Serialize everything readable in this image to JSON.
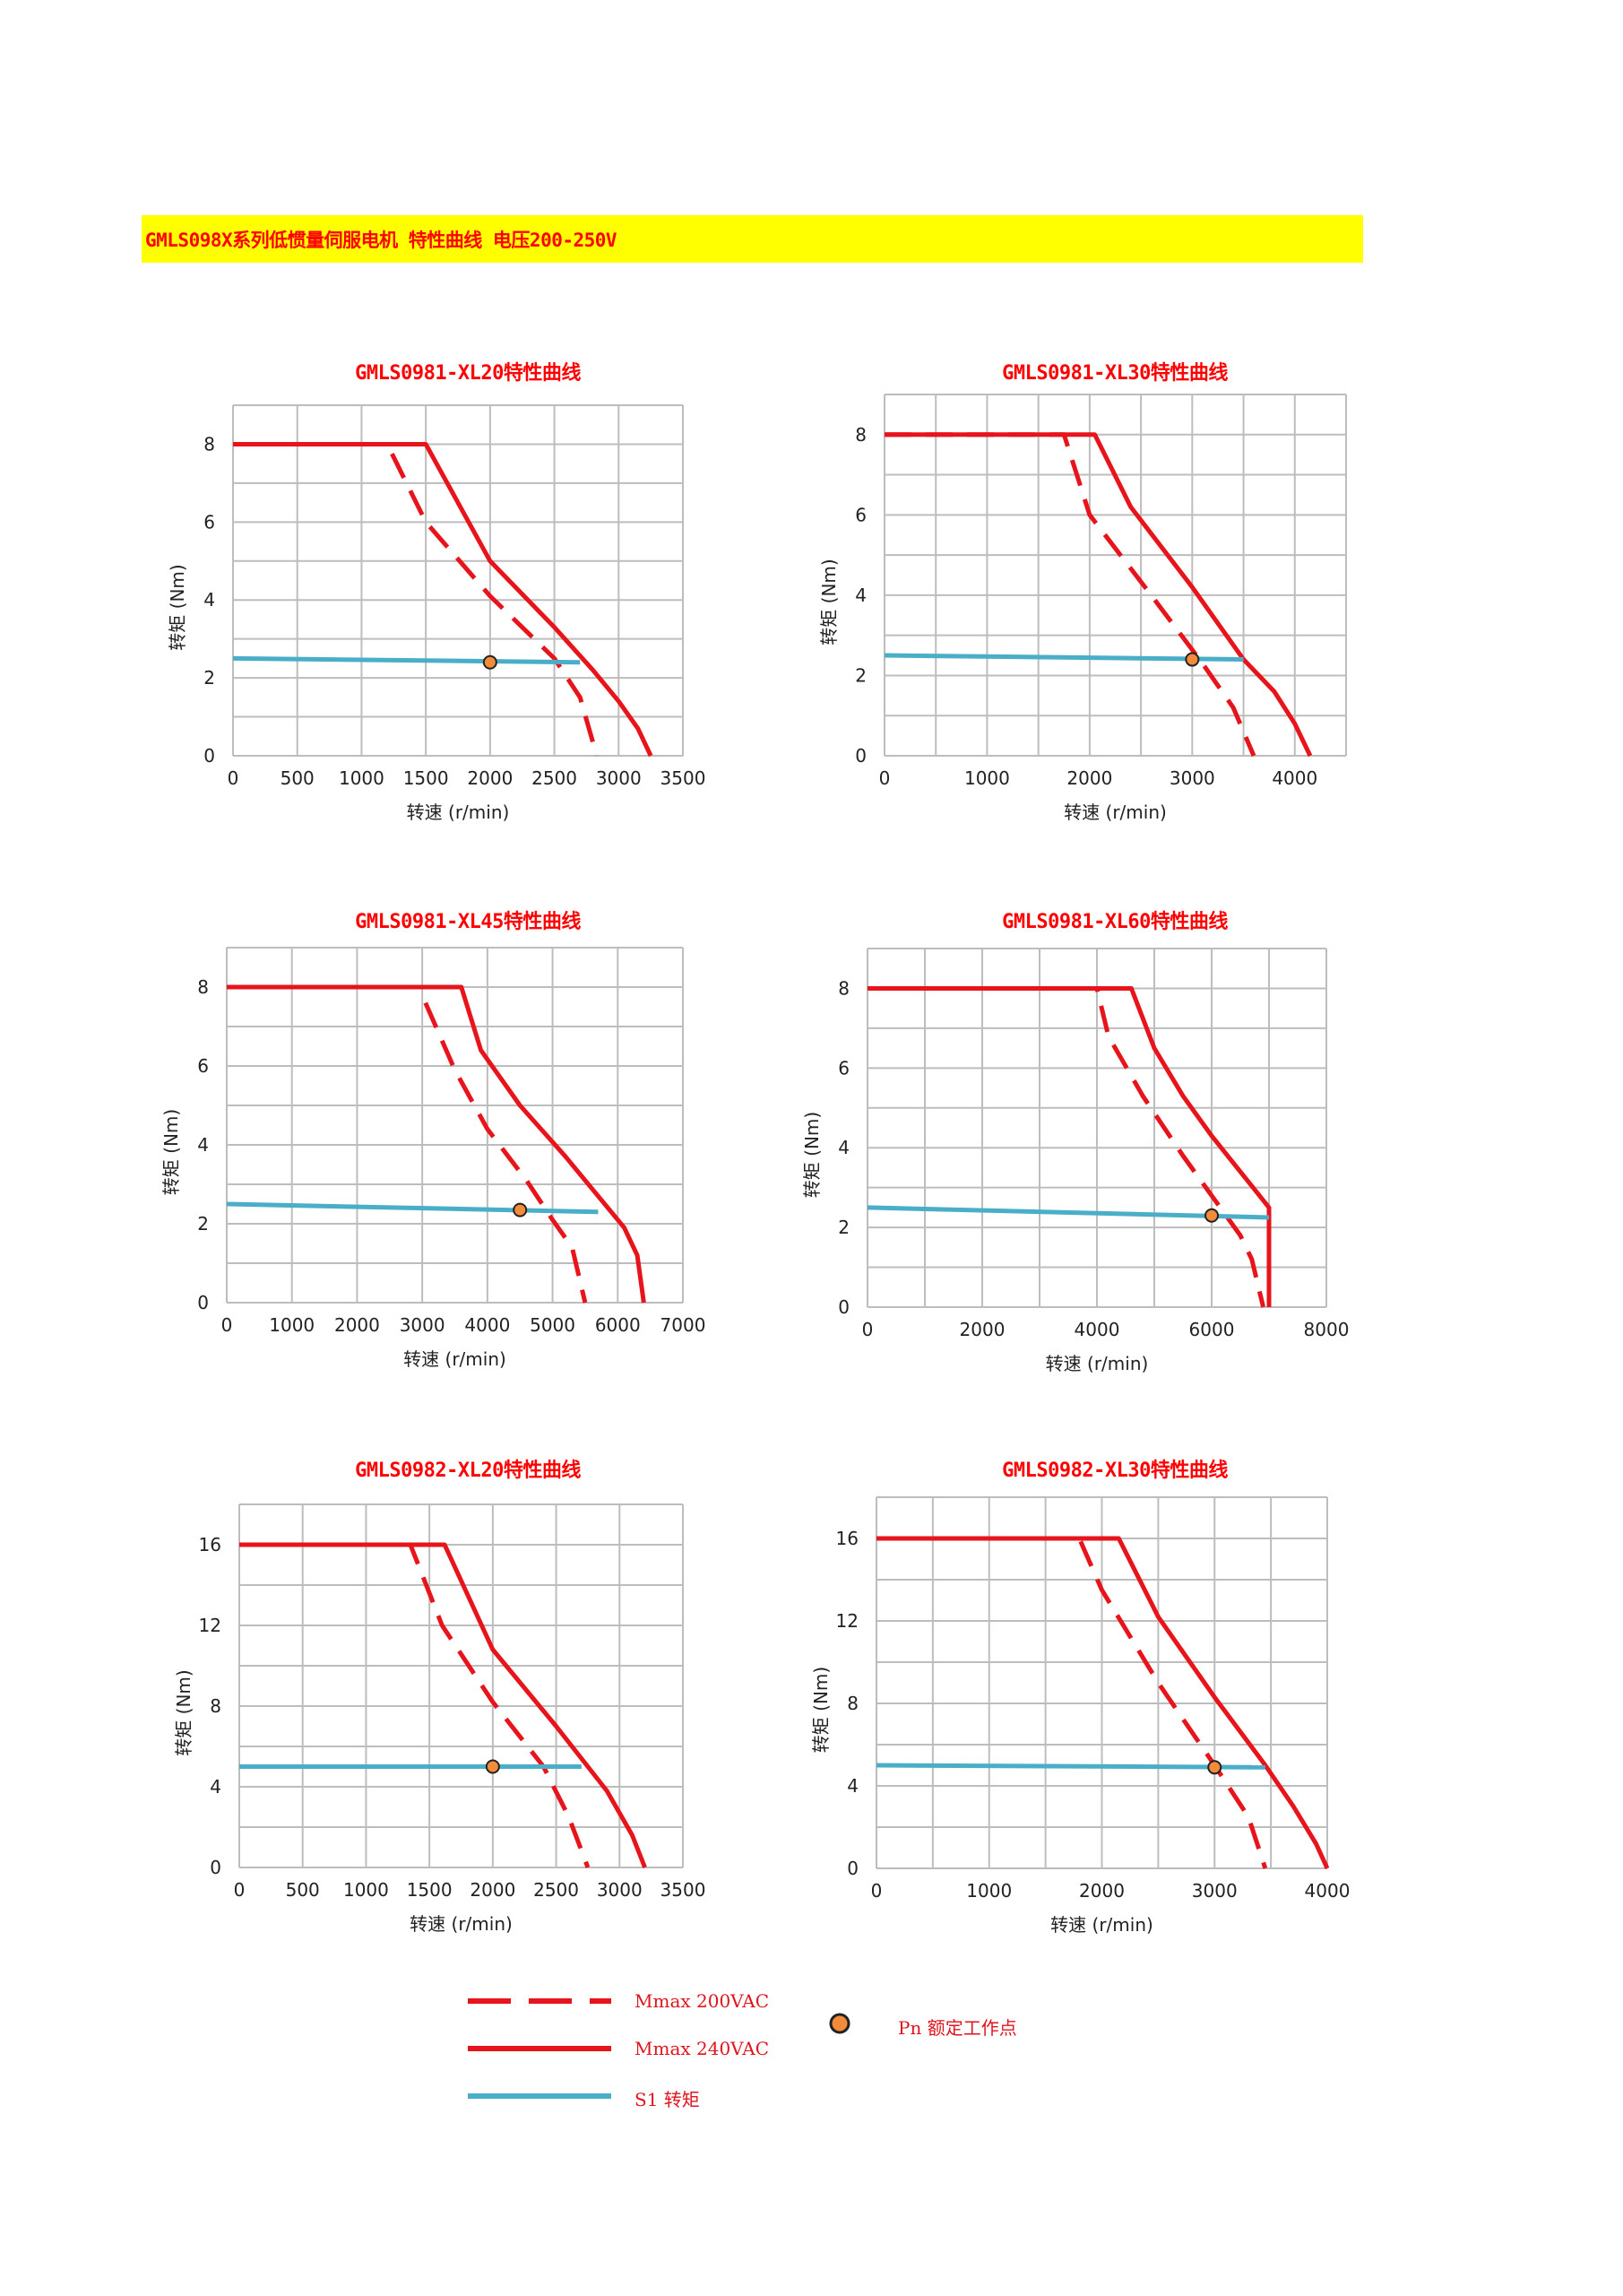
{
  "banner": {
    "text": "GMLS098X系列低惯量伺服电机 特性曲线 电压200-250V"
  },
  "colors": {
    "mmax200": "#e8141c",
    "mmax240": "#e8141c",
    "s1": "#4aaec8",
    "point": "#f28c3a",
    "grid": "#bdbdbd",
    "banner": "#ffff00"
  },
  "chart_data": [
    {
      "type": "line",
      "title": "GMLS0981-XL20特性曲线",
      "xlabel": "转速 (r/min)",
      "ylabel": "转矩 (Nm)",
      "xlim": [
        0,
        3500
      ],
      "ylim": [
        0,
        9
      ],
      "xticks": [
        0,
        500,
        1000,
        1500,
        2000,
        2500,
        3000,
        3500
      ],
      "yticks": [
        0,
        2,
        4,
        6,
        8
      ],
      "grid_x": [
        0,
        500,
        1000,
        1500,
        2000,
        2500,
        3000,
        3500
      ],
      "grid_y": [
        0,
        1,
        2,
        3,
        4,
        5,
        6,
        7,
        8,
        9
      ],
      "series": [
        {
          "name": "Mmax 200VAC",
          "style": "dashed",
          "x": [
            0,
            1200,
            1500,
            2000,
            2500,
            2700,
            2830
          ],
          "y": [
            8,
            8,
            6,
            4.1,
            2.5,
            1.5,
            0
          ]
        },
        {
          "name": "Mmax 240VAC",
          "style": "solid",
          "x": [
            0,
            1500,
            2000,
            2500,
            2800,
            3000,
            3150,
            3250
          ],
          "y": [
            8,
            8,
            5,
            3.3,
            2.2,
            1.4,
            0.7,
            0
          ]
        },
        {
          "name": "S1 转矩",
          "style": "s1",
          "x": [
            0,
            2700
          ],
          "y": [
            2.5,
            2.4
          ]
        }
      ],
      "points": [
        {
          "name": "Pn 额定工作点",
          "x": 2000,
          "y": 2.4
        }
      ]
    },
    {
      "type": "line",
      "title": "GMLS0981-XL30特性曲线",
      "xlabel": "转速 (r/min)",
      "ylabel": "转矩 (Nm)",
      "xlim": [
        0,
        4500
      ],
      "ylim": [
        0,
        9
      ],
      "xticks": [
        0,
        1000,
        2000,
        3000,
        4000
      ],
      "yticks": [
        0,
        2,
        4,
        6,
        8
      ],
      "grid_x": [
        0,
        500,
        1000,
        1500,
        2000,
        2500,
        3000,
        3500,
        4000,
        4500
      ],
      "grid_y": [
        0,
        1,
        2,
        3,
        4,
        5,
        6,
        7,
        8,
        9
      ],
      "series": [
        {
          "name": "Mmax 200VAC",
          "style": "dashed",
          "x": [
            0,
            1750,
            2000,
            2600,
            3100,
            3400,
            3600
          ],
          "y": [
            8,
            8,
            6,
            4,
            2.3,
            1.2,
            0
          ]
        },
        {
          "name": "Mmax 240VAC",
          "style": "solid",
          "x": [
            0,
            2050,
            2400,
            3000,
            3500,
            3800,
            4000,
            4150
          ],
          "y": [
            8,
            8,
            6.2,
            4.2,
            2.4,
            1.6,
            0.8,
            0
          ]
        },
        {
          "name": "S1 转矩",
          "style": "s1",
          "x": [
            0,
            3500
          ],
          "y": [
            2.5,
            2.4
          ]
        }
      ],
      "points": [
        {
          "name": "Pn 额定工作点",
          "x": 3000,
          "y": 2.4
        }
      ]
    },
    {
      "type": "line",
      "title": "GMLS0981-XL45特性曲线",
      "xlabel": "转速 (r/min)",
      "ylabel": "转矩 (Nm)",
      "xlim": [
        0,
        7000
      ],
      "ylim": [
        0,
        9
      ],
      "xticks": [
        0,
        1000,
        2000,
        3000,
        4000,
        5000,
        6000,
        7000
      ],
      "yticks": [
        0,
        2,
        4,
        6,
        8
      ],
      "grid_x": [
        0,
        1000,
        2000,
        3000,
        4000,
        5000,
        6000,
        7000
      ],
      "grid_y": [
        0,
        1,
        2,
        3,
        4,
        5,
        6,
        7,
        8,
        9
      ],
      "series": [
        {
          "name": "Mmax 200VAC",
          "style": "dashed",
          "x": [
            3050,
            3500,
            4000,
            4600,
            5000,
            5300,
            5500
          ],
          "y": [
            7.6,
            5.9,
            4.4,
            3.1,
            2.1,
            1.4,
            0
          ]
        },
        {
          "name": "Mmax 240VAC",
          "style": "solid",
          "x": [
            0,
            3600,
            3900,
            4500,
            5200,
            5700,
            6100,
            6300,
            6400
          ],
          "y": [
            8,
            8,
            6.4,
            5,
            3.7,
            2.7,
            1.9,
            1.2,
            0
          ]
        },
        {
          "name": "S1 转矩",
          "style": "s1",
          "x": [
            0,
            5700
          ],
          "y": [
            2.5,
            2.3
          ]
        }
      ],
      "points": [
        {
          "name": "Pn 额定工作点",
          "x": 4500,
          "y": 2.35
        }
      ]
    },
    {
      "type": "line",
      "title": "GMLS0981-XL60特性曲线",
      "xlabel": "转速 (r/min)",
      "ylabel": "转矩 (Nm)",
      "xlim": [
        0,
        8000
      ],
      "ylim": [
        0,
        9
      ],
      "xticks": [
        0,
        2000,
        4000,
        6000,
        8000
      ],
      "yticks": [
        0,
        2,
        4,
        6,
        8
      ],
      "grid_x": [
        0,
        1000,
        2000,
        3000,
        4000,
        5000,
        6000,
        7000,
        8000
      ],
      "grid_y": [
        0,
        1,
        2,
        3,
        4,
        5,
        6,
        7,
        8,
        9
      ],
      "series": [
        {
          "name": "Mmax 200VAC",
          "style": "dashed",
          "x": [
            0,
            4000,
            4200,
            4800,
            5500,
            6000,
            6500,
            6700,
            6900
          ],
          "y": [
            8,
            8,
            6.8,
            5.3,
            3.8,
            2.8,
            1.8,
            1.2,
            0
          ]
        },
        {
          "name": "Mmax 240VAC",
          "style": "solid",
          "x": [
            0,
            4600,
            5000,
            5500,
            6000,
            6500,
            7000,
            7000
          ],
          "y": [
            8,
            8,
            6.5,
            5.3,
            4.3,
            3.4,
            2.5,
            0
          ]
        },
        {
          "name": "S1 转矩",
          "style": "s1",
          "x": [
            0,
            7000
          ],
          "y": [
            2.5,
            2.25
          ]
        }
      ],
      "points": [
        {
          "name": "Pn 额定工作点",
          "x": 6000,
          "y": 2.3
        }
      ]
    },
    {
      "type": "line",
      "title": "GMLS0982-XL20特性曲线",
      "xlabel": "转速 (r/min)",
      "ylabel": "转矩 (Nm)",
      "xlim": [
        0,
        3500
      ],
      "ylim": [
        0,
        18
      ],
      "xticks": [
        0,
        500,
        1000,
        1500,
        2000,
        2500,
        3000,
        3500
      ],
      "yticks": [
        0,
        4,
        8,
        12,
        16
      ],
      "grid_x": [
        0,
        500,
        1000,
        1500,
        2000,
        2500,
        3000,
        3500
      ],
      "grid_y": [
        0,
        2,
        4,
        6,
        8,
        10,
        12,
        14,
        16,
        18
      ],
      "series": [
        {
          "name": "Mmax 200VAC",
          "style": "dashed",
          "x": [
            0,
            1350,
            1600,
            2000,
            2400,
            2600,
            2750
          ],
          "y": [
            16,
            16,
            12,
            8.2,
            5,
            2.5,
            0
          ]
        },
        {
          "name": "Mmax 240VAC",
          "style": "solid",
          "x": [
            0,
            1620,
            2000,
            2500,
            2900,
            3100,
            3200
          ],
          "y": [
            16,
            16,
            10.8,
            7,
            3.8,
            1.6,
            0
          ]
        },
        {
          "name": "S1 转矩",
          "style": "s1",
          "x": [
            0,
            2700
          ],
          "y": [
            5,
            5
          ]
        }
      ],
      "points": [
        {
          "name": "Pn 额定工作点",
          "x": 2000,
          "y": 5
        }
      ]
    },
    {
      "type": "line",
      "title": "GMLS0982-XL30特性曲线",
      "xlabel": "转速 (r/min)",
      "ylabel": "转矩 (Nm)",
      "xlim": [
        0,
        4000
      ],
      "ylim": [
        0,
        18
      ],
      "xticks": [
        0,
        1000,
        2000,
        3000,
        4000
      ],
      "yticks": [
        0,
        4,
        8,
        12,
        16
      ],
      "grid_x": [
        0,
        500,
        1000,
        1500,
        2000,
        2500,
        3000,
        3500,
        4000
      ],
      "grid_y": [
        0,
        2,
        4,
        6,
        8,
        10,
        12,
        14,
        16,
        18
      ],
      "series": [
        {
          "name": "Mmax 200VAC",
          "style": "dashed",
          "x": [
            0,
            1800,
            2000,
            2500,
            3000,
            3300,
            3450
          ],
          "y": [
            16,
            16,
            13.5,
            9,
            5,
            2.5,
            0
          ]
        },
        {
          "name": "Mmax 240VAC",
          "style": "solid",
          "x": [
            0,
            2150,
            2500,
            3000,
            3450,
            3700,
            3900,
            4000
          ],
          "y": [
            16,
            16,
            12.2,
            8.3,
            5,
            3,
            1.2,
            0
          ]
        },
        {
          "name": "S1 转矩",
          "style": "s1",
          "x": [
            0,
            3450
          ],
          "y": [
            5,
            4.9
          ]
        }
      ],
      "points": [
        {
          "name": "Pn 额定工作点",
          "x": 3000,
          "y": 4.9
        }
      ]
    }
  ],
  "legend": {
    "mmax200": "Mmax 200VAC",
    "mmax240": "Mmax 240VAC",
    "s1": "S1 转矩",
    "point": "Pn 额定工作点"
  }
}
